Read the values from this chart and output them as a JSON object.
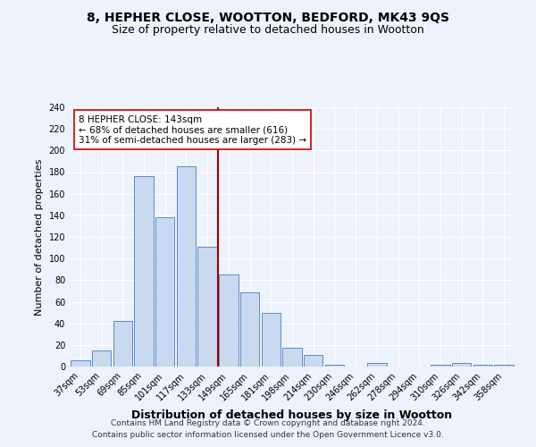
{
  "title": "8, HEPHER CLOSE, WOOTTON, BEDFORD, MK43 9QS",
  "subtitle": "Size of property relative to detached houses in Wootton",
  "xlabel": "Distribution of detached houses by size in Wootton",
  "ylabel": "Number of detached properties",
  "bar_labels": [
    "37sqm",
    "53sqm",
    "69sqm",
    "85sqm",
    "101sqm",
    "117sqm",
    "133sqm",
    "149sqm",
    "165sqm",
    "181sqm",
    "198sqm",
    "214sqm",
    "230sqm",
    "246sqm",
    "262sqm",
    "278sqm",
    "294sqm",
    "310sqm",
    "326sqm",
    "342sqm",
    "358sqm"
  ],
  "bar_values": [
    6,
    15,
    42,
    176,
    138,
    185,
    111,
    85,
    69,
    50,
    17,
    11,
    2,
    0,
    3,
    0,
    0,
    2,
    3,
    2,
    2
  ],
  "bar_color": "#c9d9f0",
  "bar_edge_color": "#5b8dc8",
  "vline_color": "#990000",
  "annotation_lines": [
    "8 HEPHER CLOSE: 143sqm",
    "← 68% of detached houses are smaller (616)",
    "31% of semi-detached houses are larger (283) →"
  ],
  "annotation_box_color": "#ffffff",
  "annotation_box_edge_color": "#cc0000",
  "ylim": [
    0,
    240
  ],
  "yticks": [
    0,
    20,
    40,
    60,
    80,
    100,
    120,
    140,
    160,
    180,
    200,
    220,
    240
  ],
  "footnote1": "Contains HM Land Registry data © Crown copyright and database right 2024.",
  "footnote2": "Contains public sector information licensed under the Open Government Licence v3.0.",
  "bg_color": "#eef2fb",
  "grid_color": "#ffffff",
  "title_fontsize": 10,
  "subtitle_fontsize": 9,
  "xlabel_fontsize": 9,
  "ylabel_fontsize": 8,
  "tick_fontsize": 7,
  "annotation_fontsize": 7.5,
  "footnote_fontsize": 6.5
}
